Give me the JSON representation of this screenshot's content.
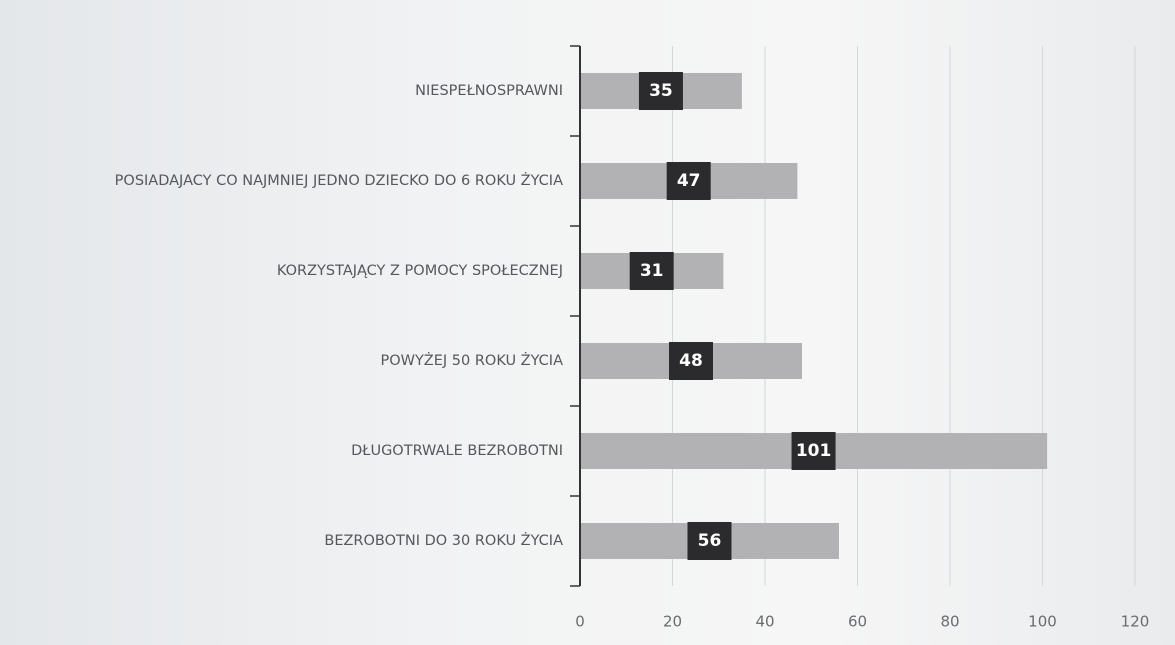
{
  "chart_data": {
    "type": "barh",
    "categories": [
      "NIESPEŁNOSPRAWNI",
      "POSIADAJACY CO NAJMNIEJ JEDNO DZIECKO DO 6 ROKU ŻYCIA",
      "KORZYSTAJĄCY Z POMOCY SPOŁECZNEJ",
      "POWYŻEJ 50 ROKU ŻYCIA",
      "DŁUGOTRWALE BEZROBOTNI",
      "BEZROBOTNI DO 30 ROKU ŻYCIA"
    ],
    "values": [
      35,
      47,
      31,
      48,
      101,
      56
    ],
    "color": "#b2b2b4",
    "label_color": "#2b2b2d",
    "xlim": [
      0,
      120
    ],
    "xticks": [
      0,
      20,
      40,
      60,
      80,
      100,
      120
    ],
    "grid": true
  }
}
